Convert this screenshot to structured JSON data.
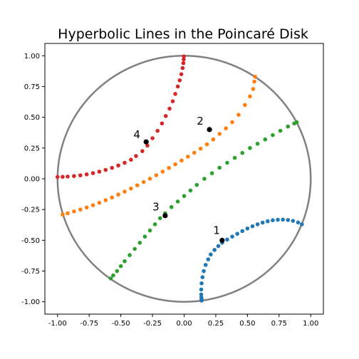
{
  "chart_data": {
    "type": "scatter",
    "title": "Hyperbolic Lines in the Poincaré Disk",
    "xlabel": "",
    "ylabel": "",
    "xlim": [
      -1.1,
      1.1
    ],
    "ylim": [
      -1.1,
      1.1
    ],
    "xticks": [
      "-1.00",
      "-0.75",
      "-0.50",
      "-0.25",
      "0.00",
      "0.25",
      "0.50",
      "0.75",
      "1.00"
    ],
    "yticks": [
      "-1.00",
      "-0.75",
      "-0.50",
      "-0.25",
      "0.00",
      "0.25",
      "0.50",
      "0.75",
      "1.00"
    ],
    "grid": false,
    "unit_circle": {
      "radius": 1,
      "color": "#808080"
    },
    "series": [
      {
        "label": "1",
        "color": "#1f77b4",
        "points": [
          [
            0.93,
            -0.37
          ],
          [
            0.9,
            -0.355
          ],
          [
            0.86,
            -0.342
          ],
          [
            0.82,
            -0.335
          ],
          [
            0.78,
            -0.332
          ],
          [
            0.74,
            -0.333
          ],
          [
            0.7,
            -0.337
          ],
          [
            0.66,
            -0.345
          ],
          [
            0.62,
            -0.356
          ],
          [
            0.58,
            -0.37
          ],
          [
            0.54,
            -0.386
          ],
          [
            0.5,
            -0.404
          ],
          [
            0.46,
            -0.425
          ],
          [
            0.42,
            -0.447
          ],
          [
            0.38,
            -0.47
          ],
          [
            0.34,
            -0.494
          ],
          [
            0.3,
            -0.52
          ],
          [
            0.27,
            -0.547
          ],
          [
            0.24,
            -0.578
          ],
          [
            0.21,
            -0.615
          ],
          [
            0.19,
            -0.655
          ],
          [
            0.17,
            -0.7
          ],
          [
            0.155,
            -0.75
          ],
          [
            0.145,
            -0.8
          ],
          [
            0.138,
            -0.85
          ],
          [
            0.135,
            -0.9
          ],
          [
            0.135,
            -0.94
          ],
          [
            0.136,
            -0.965
          ],
          [
            0.138,
            -0.98
          ],
          [
            0.138,
            -0.99
          ]
        ],
        "marked_point": [
          0.3,
          -0.5
        ],
        "label_position": [
          0.23,
          -0.42
        ]
      },
      {
        "label": "2",
        "color": "#ff7f0e",
        "points": [
          [
            -0.96,
            -0.29
          ],
          [
            -0.92,
            -0.28
          ],
          [
            -0.87,
            -0.265
          ],
          [
            -0.82,
            -0.25
          ],
          [
            -0.77,
            -0.233
          ],
          [
            -0.72,
            -0.215
          ],
          [
            -0.67,
            -0.195
          ],
          [
            -0.62,
            -0.174
          ],
          [
            -0.57,
            -0.152
          ],
          [
            -0.52,
            -0.128
          ],
          [
            -0.47,
            -0.104
          ],
          [
            -0.42,
            -0.079
          ],
          [
            -0.37,
            -0.053
          ],
          [
            -0.32,
            -0.026
          ],
          [
            -0.27,
            0.001
          ],
          [
            -0.22,
            0.029
          ],
          [
            -0.17,
            0.058
          ],
          [
            -0.12,
            0.088
          ],
          [
            -0.07,
            0.118
          ],
          [
            -0.02,
            0.149
          ],
          [
            0.03,
            0.18
          ],
          [
            0.08,
            0.212
          ],
          [
            0.13,
            0.245
          ],
          [
            0.18,
            0.28
          ],
          [
            0.23,
            0.32
          ],
          [
            0.28,
            0.365
          ],
          [
            0.33,
            0.41
          ],
          [
            0.38,
            0.46
          ],
          [
            0.43,
            0.52
          ],
          [
            0.48,
            0.6
          ],
          [
            0.52,
            0.67
          ],
          [
            0.545,
            0.73
          ],
          [
            0.555,
            0.79
          ],
          [
            0.56,
            0.83
          ]
        ],
        "marked_point": [
          0.2,
          0.4
        ],
        "label_position": [
          0.1,
          0.47
        ]
      },
      {
        "label": "3",
        "color": "#2ca02c",
        "points": [
          [
            -0.58,
            -0.81
          ],
          [
            -0.56,
            -0.785
          ],
          [
            -0.53,
            -0.75
          ],
          [
            -0.5,
            -0.71
          ],
          [
            -0.47,
            -0.67
          ],
          [
            -0.43,
            -0.62
          ],
          [
            -0.39,
            -0.57
          ],
          [
            -0.35,
            -0.52
          ],
          [
            -0.31,
            -0.47
          ],
          [
            -0.27,
            -0.42
          ],
          [
            -0.23,
            -0.37
          ],
          [
            -0.19,
            -0.32
          ],
          [
            -0.15,
            -0.28
          ],
          [
            -0.1,
            -0.23
          ],
          [
            -0.05,
            -0.185
          ],
          [
            0.0,
            -0.14
          ],
          [
            0.05,
            -0.095
          ],
          [
            0.1,
            -0.05
          ],
          [
            0.16,
            0.0
          ],
          [
            0.22,
            0.045
          ],
          [
            0.28,
            0.09
          ],
          [
            0.34,
            0.13
          ],
          [
            0.4,
            0.17
          ],
          [
            0.46,
            0.21
          ],
          [
            0.52,
            0.25
          ],
          [
            0.58,
            0.285
          ],
          [
            0.64,
            0.32
          ],
          [
            0.7,
            0.355
          ],
          [
            0.76,
            0.39
          ],
          [
            0.82,
            0.425
          ],
          [
            0.87,
            0.45
          ],
          [
            0.89,
            0.46
          ]
        ],
        "marked_point": [
          -0.15,
          -0.3
        ],
        "label_position": [
          -0.25,
          -0.23
        ]
      },
      {
        "label": "4",
        "color": "#d62728",
        "points": [
          [
            -1.0,
            0.015
          ],
          [
            -0.96,
            0.016
          ],
          [
            -0.92,
            0.018
          ],
          [
            -0.87,
            0.022
          ],
          [
            -0.82,
            0.028
          ],
          [
            -0.77,
            0.036
          ],
          [
            -0.72,
            0.046
          ],
          [
            -0.67,
            0.058
          ],
          [
            -0.62,
            0.072
          ],
          [
            -0.57,
            0.089
          ],
          [
            -0.52,
            0.108
          ],
          [
            -0.47,
            0.13
          ],
          [
            -0.42,
            0.155
          ],
          [
            -0.38,
            0.185
          ],
          [
            -0.33,
            0.225
          ],
          [
            -0.29,
            0.27
          ],
          [
            -0.25,
            0.33
          ],
          [
            -0.21,
            0.39
          ],
          [
            -0.175,
            0.45
          ],
          [
            -0.145,
            0.51
          ],
          [
            -0.115,
            0.57
          ],
          [
            -0.09,
            0.63
          ],
          [
            -0.07,
            0.69
          ],
          [
            -0.05,
            0.75
          ],
          [
            -0.035,
            0.8
          ],
          [
            -0.022,
            0.85
          ],
          [
            -0.012,
            0.9
          ],
          [
            -0.006,
            0.94
          ],
          [
            -0.003,
            0.97
          ],
          [
            -0.002,
            0.995
          ]
        ],
        "marked_point": [
          -0.3,
          0.3
        ],
        "label_position": [
          -0.4,
          0.36
        ]
      }
    ]
  }
}
